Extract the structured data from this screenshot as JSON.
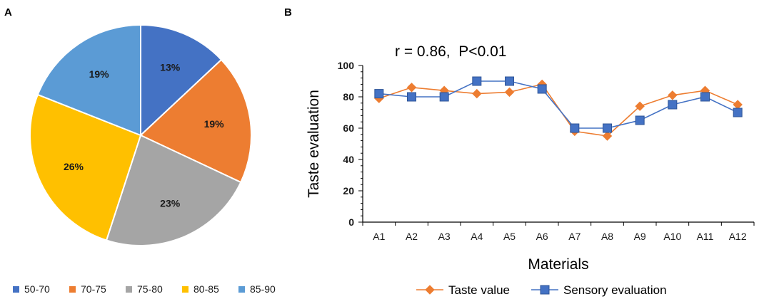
{
  "chart_data": [
    {
      "type": "pie",
      "panel_label": "A",
      "categories": [
        "50-70",
        "70-75",
        "75-80",
        "80-85",
        "85-90"
      ],
      "values": [
        13,
        19,
        23,
        26,
        19
      ],
      "labels": [
        "13%",
        "19%",
        "23%",
        "26%",
        "19%"
      ],
      "colors": [
        "#4472c4",
        "#ed7d31",
        "#a5a5a5",
        "#ffc000",
        "#5b9bd5"
      ],
      "legend_position": "bottom"
    },
    {
      "type": "line",
      "panel_label": "B",
      "annotation": "r = 0.86,  P<0.01",
      "xlabel": "Materials",
      "ylabel": "Taste evaluation",
      "categories": [
        "A1",
        "A2",
        "A3",
        "A4",
        "A5",
        "A6",
        "A7",
        "A8",
        "A9",
        "A10",
        "A11",
        "A12"
      ],
      "ylim": [
        0,
        100
      ],
      "yticks": [
        0,
        20,
        40,
        60,
        80,
        100
      ],
      "legend_position": "bottom",
      "series": [
        {
          "name": "Taste value",
          "marker": "diamond",
          "color": "#ed7d31",
          "values": [
            79,
            86,
            84,
            82,
            83,
            88,
            58,
            55,
            74,
            81,
            84,
            75
          ]
        },
        {
          "name": "Sensory evaluation",
          "marker": "square",
          "color": "#4472c4",
          "values": [
            82,
            80,
            80,
            90,
            90,
            85,
            60,
            60,
            65,
            75,
            80,
            70
          ]
        }
      ]
    }
  ]
}
